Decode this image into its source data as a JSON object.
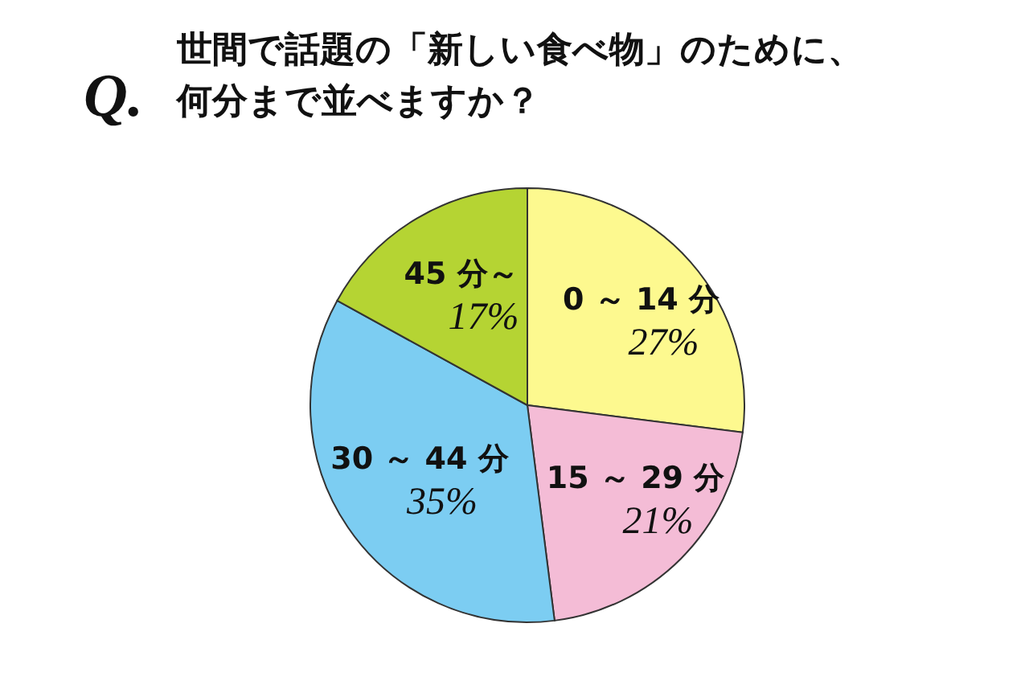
{
  "chart_data": {
    "type": "pie",
    "title": "世間で話題の「新しい食べ物」のために、何分まで並べますか？",
    "annotations": [
      "Q."
    ],
    "categories": [
      "0 ～ 14 分",
      "15 ～ 29 分",
      "30 ～ 44 分",
      "45 分～"
    ],
    "values": [
      27,
      21,
      35,
      17
    ],
    "value_labels": [
      "27%",
      "21%",
      "35%",
      "17%"
    ],
    "colors": [
      "#fdf98f",
      "#f4bcd6",
      "#7ccdf2",
      "#b5d433"
    ]
  }
}
